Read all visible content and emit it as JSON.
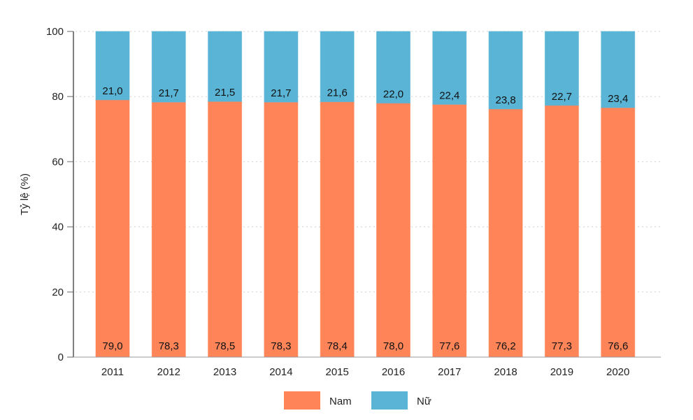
{
  "chart_data": {
    "type": "bar",
    "stacked": true,
    "title": "",
    "xlabel": "",
    "ylabel": "Tỷ lệ (%)",
    "ylim": [
      0,
      100
    ],
    "yticks": [
      0,
      20,
      40,
      60,
      80,
      100
    ],
    "grid": true,
    "legend_position": "bottom",
    "categories": [
      "2011",
      "2012",
      "2013",
      "2014",
      "2015",
      "2016",
      "2017",
      "2018",
      "2019",
      "2020"
    ],
    "series": [
      {
        "name": "Nam",
        "color": "#FF8559",
        "values": [
          79.0,
          78.3,
          78.5,
          78.3,
          78.4,
          78.0,
          77.6,
          76.2,
          77.3,
          76.6
        ],
        "labels": [
          "79,0",
          "78,3",
          "78,5",
          "78,3",
          "78,4",
          "78,0",
          "77,6",
          "76,2",
          "77,3",
          "76,6"
        ]
      },
      {
        "name": "Nữ",
        "color": "#5AB4D6",
        "values": [
          21.0,
          21.7,
          21.5,
          21.7,
          21.6,
          22.0,
          22.4,
          23.8,
          22.7,
          23.4
        ],
        "labels": [
          "21,0",
          "21,7",
          "21,5",
          "21,7",
          "21,6",
          "22,0",
          "22,4",
          "23,8",
          "22,7",
          "23,4"
        ]
      }
    ]
  }
}
